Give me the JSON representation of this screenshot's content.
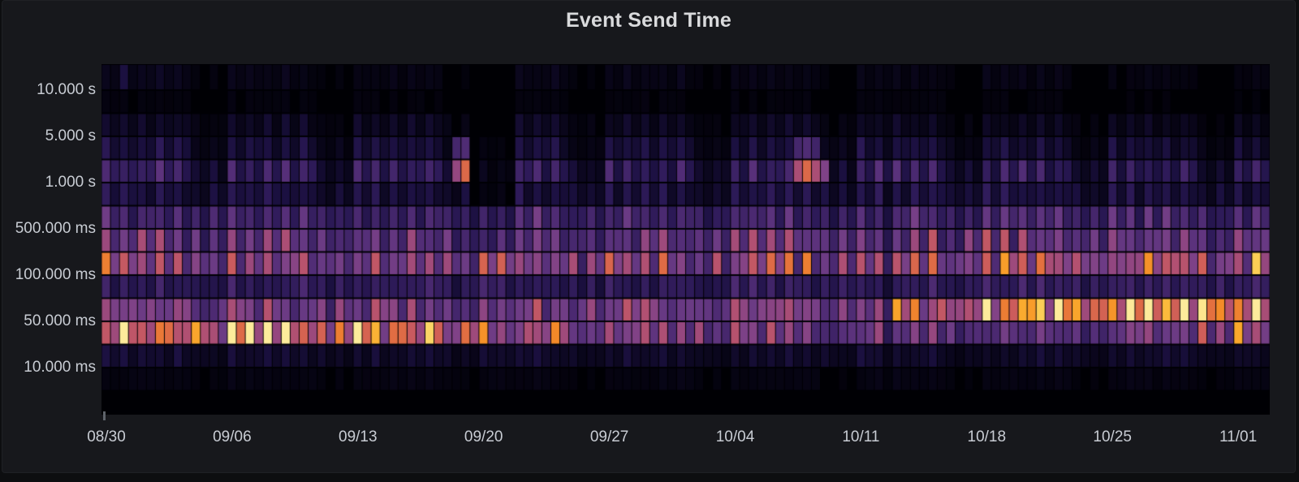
{
  "panel": {
    "title": "Event Send Time",
    "background": "#17181c",
    "page_background": "#0d0e10",
    "title_color": "#d9dadc",
    "axis_text_color": "#c8ccd3"
  },
  "chart_data": {
    "type": "heatmap",
    "title": "Event Send Time",
    "xlabel": "",
    "ylabel": "",
    "x_tick_labels": [
      "08/30",
      "09/06",
      "09/13",
      "09/20",
      "09/27",
      "10/04",
      "10/11",
      "10/18",
      "10/25",
      "11/01"
    ],
    "y_tick_labels": [
      "10.000 s",
      "5.000 s",
      "1.000 s",
      "500.000 ms",
      "100.000 ms",
      "50.000 ms",
      "10.000 ms"
    ],
    "y_scale": "log",
    "x_range": {
      "start": "08/30",
      "end": "11/03",
      "bucket_hours": 12
    },
    "days": 65,
    "columns_per_day": 2,
    "weekend_day_indices": [
      5,
      6
    ],
    "plot_background": "#000004",
    "legend": "none",
    "grid": "off",
    "colormap_stops": [
      [
        0.0,
        "#000004"
      ],
      [
        0.06,
        "#0d0823"
      ],
      [
        0.12,
        "#1b1040"
      ],
      [
        0.2,
        "#2d1a58"
      ],
      [
        0.28,
        "#402468"
      ],
      [
        0.36,
        "#542e78"
      ],
      [
        0.44,
        "#693a84"
      ],
      [
        0.5,
        "#7f4287"
      ],
      [
        0.56,
        "#98487e"
      ],
      [
        0.62,
        "#b35171"
      ],
      [
        0.68,
        "#cc5c5c"
      ],
      [
        0.74,
        "#e36f40"
      ],
      [
        0.8,
        "#f48a28"
      ],
      [
        0.86,
        "#faa82c"
      ],
      [
        0.92,
        "#fbc94a"
      ],
      [
        1.0,
        "#fdeb9b"
      ]
    ],
    "rows": [
      {
        "name": "row-00-above-10s",
        "weekly_intensity": [
          0.06,
          0.05,
          0.04,
          0.04,
          0.05,
          0.04,
          0.04,
          0.04,
          0.03,
          0.03
        ],
        "weekend_factor": 0.4,
        "night_factor": 0.6,
        "spikes": [
          {
            "d": 1,
            "h": 0,
            "v": 0.12
          }
        ]
      },
      {
        "name": "row-01-10s",
        "weekly_intensity": [
          0.02,
          0.02,
          0.02,
          0.02,
          0.02,
          0.02,
          0.02,
          0.02,
          0.015,
          0.015
        ],
        "weekend_factor": 0.5,
        "night_factor": 0.8,
        "spikes": []
      },
      {
        "name": "row-02-5s",
        "weekly_intensity": [
          0.08,
          0.08,
          0.07,
          0.08,
          0.07,
          0.07,
          0.08,
          0.06,
          0.06,
          0.06
        ],
        "weekend_factor": 0.35,
        "night_factor": 0.55,
        "spikes": []
      },
      {
        "name": "row-03-above-1s",
        "weekly_intensity": [
          0.16,
          0.15,
          0.14,
          0.15,
          0.14,
          0.15,
          0.16,
          0.13,
          0.12,
          0.12
        ],
        "weekend_factor": 0.3,
        "night_factor": 0.55,
        "spikes": [
          {
            "d": 19,
            "h": 1,
            "v": 0.3
          },
          {
            "d": 20,
            "h": 0,
            "v": 0.34
          },
          {
            "d": 38,
            "h": 1,
            "v": 0.3
          },
          {
            "d": 39,
            "h": 0,
            "v": 0.34
          },
          {
            "d": 39,
            "h": 1,
            "v": 0.28
          }
        ]
      },
      {
        "name": "row-04-1s",
        "weekly_intensity": [
          0.32,
          0.3,
          0.29,
          0.3,
          0.28,
          0.3,
          0.32,
          0.28,
          0.26,
          0.25
        ],
        "weekend_factor": 0.3,
        "night_factor": 0.55,
        "spikes": [
          {
            "d": 19,
            "h": 1,
            "v": 0.55
          },
          {
            "d": 20,
            "h": 0,
            "v": 0.72
          },
          {
            "d": 38,
            "h": 1,
            "v": 0.6
          },
          {
            "d": 39,
            "h": 0,
            "v": 0.72
          },
          {
            "d": 39,
            "h": 1,
            "v": 0.6
          },
          {
            "d": 40,
            "h": 0,
            "v": 0.5
          }
        ]
      },
      {
        "name": "row-05",
        "weekly_intensity": [
          0.17,
          0.17,
          0.16,
          0.17,
          0.16,
          0.17,
          0.18,
          0.17,
          0.16,
          0.16
        ],
        "weekend_factor": 0.6,
        "night_factor": 0.55,
        "spikes": []
      },
      {
        "name": "row-06-500ms",
        "weekly_intensity": [
          0.37,
          0.38,
          0.37,
          0.38,
          0.37,
          0.38,
          0.39,
          0.39,
          0.38,
          0.38
        ],
        "weekend_factor": 0.75,
        "night_factor": 0.6,
        "spikes": []
      },
      {
        "name": "row-07",
        "weekly_intensity": [
          0.48,
          0.49,
          0.48,
          0.49,
          0.48,
          0.49,
          0.5,
          0.53,
          0.56,
          0.57
        ],
        "weekend_factor": 0.8,
        "night_factor": 0.62,
        "spikes": []
      },
      {
        "name": "row-08-100ms",
        "weekly_intensity": [
          0.62,
          0.63,
          0.62,
          0.63,
          0.62,
          0.63,
          0.65,
          0.7,
          0.74,
          0.75
        ],
        "weekend_factor": 0.8,
        "night_factor": 0.66,
        "spikes": []
      },
      {
        "name": "row-09",
        "weekly_intensity": [
          0.25,
          0.26,
          0.25,
          0.26,
          0.25,
          0.26,
          0.27,
          0.28,
          0.29,
          0.3
        ],
        "weekend_factor": 0.8,
        "night_factor": 0.7,
        "spikes": []
      },
      {
        "name": "row-10-50ms",
        "weekly_intensity": [
          0.52,
          0.54,
          0.52,
          0.54,
          0.52,
          0.54,
          0.55,
          0.88,
          0.93,
          0.95
        ],
        "weekend_factor": 0.85,
        "night_factor": 0.78,
        "spikes": [
          {
            "d": 44,
            "h": 0,
            "v": 0.85
          }
        ]
      },
      {
        "name": "row-11",
        "weekly_intensity": [
          0.78,
          0.88,
          0.82,
          0.7,
          0.62,
          0.55,
          0.48,
          0.42,
          0.46,
          0.72
        ],
        "weekend_factor": 0.85,
        "night_factor": 0.75,
        "spikes": []
      },
      {
        "name": "row-12-10ms",
        "weekly_intensity": [
          0.1,
          0.1,
          0.09,
          0.1,
          0.09,
          0.09,
          0.1,
          0.09,
          0.09,
          0.09
        ],
        "weekend_factor": 0.7,
        "night_factor": 0.7,
        "spikes": []
      },
      {
        "name": "row-13",
        "weekly_intensity": [
          0.03,
          0.03,
          0.03,
          0.03,
          0.03,
          0.03,
          0.03,
          0.03,
          0.03,
          0.03
        ],
        "weekend_factor": 0.6,
        "night_factor": 0.8,
        "spikes": []
      },
      {
        "name": "row-14-bottom",
        "weekly_intensity": [
          0,
          0,
          0,
          0,
          0,
          0,
          0,
          0,
          0,
          0
        ],
        "weekend_factor": 1,
        "night_factor": 1,
        "spikes": []
      }
    ],
    "dips": [
      {
        "rows": [
          0,
          5
        ],
        "day_start": 20.5,
        "day_end": 22.8,
        "factor": 0.15
      },
      {
        "rows": [
          6,
          7
        ],
        "day_start": 20.5,
        "day_end": 22.8,
        "factor": 0.7
      },
      {
        "rows": [
          3,
          13
        ],
        "day_start": 43.4,
        "day_end": 44.0,
        "factor": 0.6
      }
    ]
  }
}
